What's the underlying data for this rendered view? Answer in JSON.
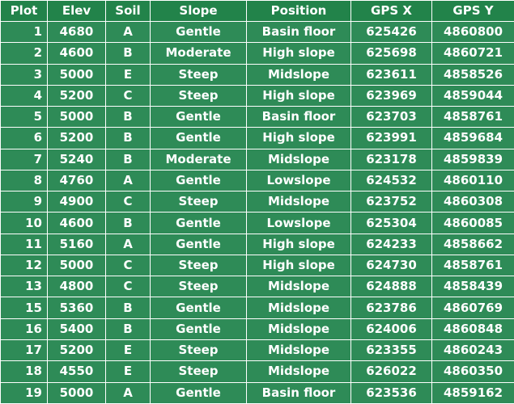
{
  "table": {
    "columns": [
      "Plot",
      "Elev",
      "Soil",
      "Slope",
      "Position",
      "GPS X",
      "GPS Y"
    ],
    "rows": [
      [
        "1",
        "4680",
        "A",
        "Gentle",
        "Basin floor",
        "625426",
        "4860800"
      ],
      [
        "2",
        "4600",
        "B",
        "Moderate",
        "High slope",
        "625698",
        "4860721"
      ],
      [
        "3",
        "5000",
        "E",
        "Steep",
        "Midslope",
        "623611",
        "4858526"
      ],
      [
        "4",
        "5200",
        "C",
        "Steep",
        "High slope",
        "623969",
        "4859044"
      ],
      [
        "5",
        "5000",
        "B",
        "Gentle",
        "Basin floor",
        "623703",
        "4858761"
      ],
      [
        "6",
        "5200",
        "B",
        "Gentle",
        "High slope",
        "623991",
        "4859684"
      ],
      [
        "7",
        "5240",
        "B",
        "Moderate",
        "Midslope",
        "623178",
        "4859839"
      ],
      [
        "8",
        "4760",
        "A",
        "Gentle",
        "Lowslope",
        "624532",
        "4860110"
      ],
      [
        "9",
        "4900",
        "C",
        "Steep",
        "Midslope",
        "623752",
        "4860308"
      ],
      [
        "10",
        "4600",
        "B",
        "Gentle",
        "Lowslope",
        "625304",
        "4860085"
      ],
      [
        "11",
        "5160",
        "A",
        "Gentle",
        "High slope",
        "624233",
        "4858662"
      ],
      [
        "12",
        "5000",
        "C",
        "Steep",
        "High slope",
        "624730",
        "4858761"
      ],
      [
        "13",
        "4800",
        "C",
        "Steep",
        "Midslope",
        "624888",
        "4858439"
      ],
      [
        "15",
        "5360",
        "B",
        "Gentle",
        "Midslope",
        "623786",
        "4860769"
      ],
      [
        "16",
        "5400",
        "B",
        "Gentle",
        "Midslope",
        "624006",
        "4860848"
      ],
      [
        "17",
        "5200",
        "E",
        "Steep",
        "Midslope",
        "623355",
        "4860243"
      ],
      [
        "18",
        "4550",
        "E",
        "Steep",
        "Midslope",
        "626022",
        "4860350"
      ],
      [
        "19",
        "5000",
        "A",
        "Gentle",
        "Basin floor",
        "623536",
        "4859162"
      ]
    ]
  },
  "colors": {
    "cell_background": "#2e8b57",
    "header_background": "#22834a",
    "text": "#ffffff",
    "grid_lines": "#ffffff"
  }
}
